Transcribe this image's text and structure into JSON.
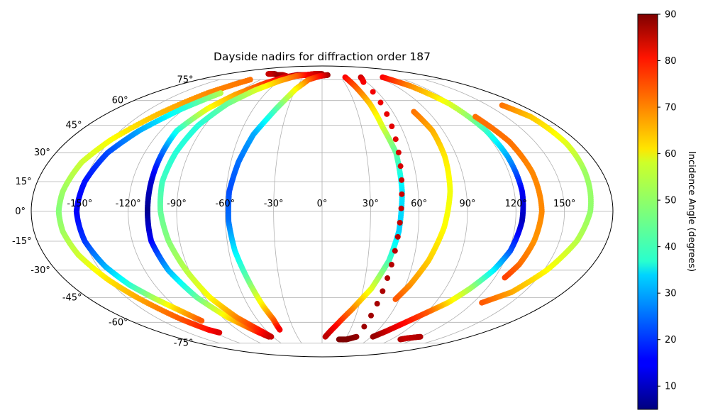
{
  "chart_data": {
    "type": "scatter",
    "projection": "mollweide",
    "title": "Dayside nadirs for diffraction order 187",
    "xlabel": "",
    "ylabel": "",
    "grid": true,
    "x_ticks": [
      "-150°",
      "-120°",
      "-90°",
      "-60°",
      "-30°",
      "0°",
      "30°",
      "60°",
      "90°",
      "120°",
      "150°"
    ],
    "y_ticks": [
      "75°",
      "60°",
      "45°",
      "30°",
      "15°",
      "0°",
      "-15°",
      "-30°",
      "-45°",
      "-60°",
      "-75°"
    ],
    "xlim": [
      -180,
      180
    ],
    "ylim": [
      -90,
      90
    ],
    "colormap": "jet",
    "colorbar": {
      "label": "Incidence Angle (degrees)",
      "range": [
        5,
        90
      ],
      "ticks": [
        "10",
        "20",
        "30",
        "40",
        "50",
        "60",
        "70",
        "80",
        "90"
      ]
    },
    "series": [
      {
        "points": [
          [
            -60,
            78,
            83
          ],
          [
            -70,
            79,
            85
          ],
          [
            -80,
            79,
            87
          ],
          [
            -90,
            80,
            88
          ],
          [
            -102,
            80,
            84
          ]
        ]
      },
      {
        "points": [
          [
            -105,
            75,
            70
          ],
          [
            -122,
            65,
            68
          ],
          [
            -136,
            52,
            64
          ],
          [
            -150,
            37,
            58
          ],
          [
            -158,
            25,
            54
          ],
          [
            -162,
            10,
            50
          ],
          [
            -163,
            0,
            48
          ],
          [
            -162,
            -10,
            50
          ],
          [
            -158,
            -22,
            54
          ],
          [
            -150,
            -35,
            60
          ],
          [
            -142,
            -45,
            65
          ],
          [
            -130,
            -58,
            72
          ],
          [
            -121,
            -65,
            78
          ],
          [
            -115,
            -67,
            82
          ]
        ]
      },
      {
        "points": [
          [
            -108,
            65,
            52
          ],
          [
            -122,
            55,
            40
          ],
          [
            -136,
            42,
            30
          ],
          [
            -145,
            30,
            22
          ],
          [
            -150,
            15,
            17
          ],
          [
            -152,
            0,
            15
          ],
          [
            -150,
            -15,
            20
          ],
          [
            -145,
            -28,
            30
          ],
          [
            -138,
            -38,
            40
          ],
          [
            -130,
            -45,
            50
          ],
          [
            -121,
            -52,
            62
          ],
          [
            -113,
            -59,
            72
          ]
        ]
      },
      {
        "points": [
          [
            -15,
            79,
            88
          ],
          [
            -30,
            79,
            87
          ],
          [
            -45,
            79,
            85
          ],
          [
            -60,
            77,
            82
          ],
          [
            -75,
            72,
            75
          ],
          [
            -90,
            64,
            66
          ],
          [
            -100,
            55,
            58
          ],
          [
            -108,
            42,
            40
          ],
          [
            -108,
            30,
            25
          ],
          [
            -108,
            15,
            12
          ],
          [
            -108,
            0,
            6
          ],
          [
            -108,
            -15,
            15
          ],
          [
            -104,
            -30,
            30
          ],
          [
            -96,
            -45,
            45
          ],
          [
            -85,
            -57,
            60
          ],
          [
            -72,
            -66,
            75
          ],
          [
            -65,
            -70,
            85
          ]
        ]
      },
      {
        "points": [
          [
            0,
            80,
            88
          ],
          [
            -15,
            80,
            84
          ],
          [
            -30,
            79,
            80
          ],
          [
            -45,
            78,
            72
          ],
          [
            -60,
            74,
            65
          ],
          [
            -75,
            67,
            55
          ],
          [
            -87,
            58,
            46
          ],
          [
            -95,
            45,
            40
          ],
          [
            -99,
            30,
            40
          ],
          [
            -101,
            15,
            42
          ],
          [
            -100,
            0,
            45
          ],
          [
            -97,
            -15,
            48
          ],
          [
            -92,
            -30,
            52
          ],
          [
            -86,
            -45,
            58
          ],
          [
            -77,
            -57,
            68
          ],
          [
            -66,
            -66,
            78
          ],
          [
            -62,
            -70,
            84
          ]
        ]
      },
      {
        "points": [
          [
            10,
            79,
            88
          ],
          [
            -5,
            78,
            80
          ],
          [
            -20,
            75,
            72
          ],
          [
            -30,
            68,
            60
          ],
          [
            -40,
            55,
            45
          ],
          [
            -50,
            40,
            30
          ],
          [
            -55,
            25,
            25
          ],
          [
            -58,
            10,
            22
          ],
          [
            -58,
            -5,
            25
          ],
          [
            -56,
            -20,
            35
          ],
          [
            -52,
            -35,
            45
          ],
          [
            -48,
            -50,
            60
          ],
          [
            -45,
            -58,
            70
          ],
          [
            -45,
            -65,
            80
          ]
        ]
      },
      {
        "points": [
          [
            37,
            77,
            80
          ],
          [
            40,
            70,
            73
          ],
          [
            44,
            58,
            63
          ],
          [
            46,
            44,
            55
          ],
          [
            50,
            30,
            45
          ],
          [
            50,
            10,
            35
          ],
          [
            48,
            -10,
            33
          ],
          [
            44,
            -25,
            42
          ],
          [
            36,
            -40,
            55
          ],
          [
            25,
            -52,
            68
          ],
          [
            14,
            -62,
            78
          ],
          [
            4,
            -70,
            85
          ]
        ]
      },
      {
        "points": [
          [
            62,
            77,
            84
          ],
          [
            56,
            73,
            80
          ],
          [
            42,
            -70,
            88
          ],
          [
            32,
            -72,
            90
          ],
          [
            22,
            -72,
            90
          ]
        ]
      },
      {
        "points": [
          [
            78,
            53,
            70
          ],
          [
            82,
            42,
            65
          ],
          [
            82,
            28,
            60
          ],
          [
            80,
            10,
            57
          ],
          [
            76,
            -8,
            58
          ],
          [
            70,
            -25,
            62
          ],
          [
            63,
            -38,
            67
          ],
          [
            57,
            -46,
            72
          ]
        ]
      },
      {
        "points": [
          [
            97,
            77,
            80
          ],
          [
            108,
            70,
            68
          ],
          [
            117,
            58,
            56
          ],
          [
            122,
            42,
            42
          ],
          [
            124,
            28,
            30
          ],
          [
            125,
            10,
            15
          ],
          [
            124,
            -5,
            10
          ],
          [
            121,
            -20,
            22
          ],
          [
            116,
            -30,
            35
          ],
          [
            108,
            -40,
            50
          ],
          [
            100,
            -48,
            60
          ],
          [
            90,
            -54,
            72
          ],
          [
            80,
            -60,
            78
          ],
          [
            70,
            -66,
            83
          ],
          [
            62,
            -70,
            88
          ]
        ]
      },
      {
        "points": [
          [
            125,
            50,
            70
          ],
          [
            132,
            36,
            70
          ],
          [
            135,
            20,
            68
          ],
          [
            136,
            0,
            68
          ],
          [
            134,
            -15,
            67
          ],
          [
            131,
            -27,
            70
          ],
          [
            127,
            -34,
            74
          ]
        ]
      },
      {
        "points": [
          [
            163,
            57,
            70
          ],
          [
            170,
            50,
            63
          ],
          [
            171,
            35,
            56
          ],
          [
            169,
            20,
            50
          ],
          [
            166,
            0,
            49
          ],
          [
            161,
            -15,
            52
          ],
          [
            152,
            -30,
            58
          ],
          [
            141,
            -42,
            65
          ],
          [
            127,
            -48,
            72
          ]
        ]
      },
      {
        "points": [
          [
            102,
            -72,
            86
          ],
          [
            108,
            -71,
            84
          ],
          [
            120,
            -70,
            86
          ]
        ]
      }
    ]
  }
}
